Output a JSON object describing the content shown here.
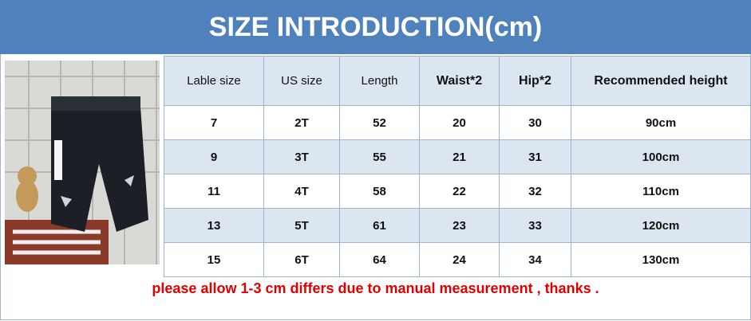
{
  "header": {
    "title": "SIZE INTRODUCTION(cm)"
  },
  "table": {
    "headers": [
      "Lable size",
      "US size",
      "Length",
      "Waist*2",
      "Hip*2",
      "Recommended height"
    ],
    "rows": [
      [
        "7",
        "2T",
        "52",
        "20",
        "30",
        "90cm"
      ],
      [
        "9",
        "3T",
        "55",
        "21",
        "31",
        "100cm"
      ],
      [
        "11",
        "4T",
        "58",
        "22",
        "32",
        "110cm"
      ],
      [
        "13",
        "5T",
        "61",
        "23",
        "33",
        "120cm"
      ],
      [
        "15",
        "6T",
        "64",
        "24",
        "34",
        "130cm"
      ]
    ]
  },
  "footer": {
    "note": "please allow 1-3 cm differs due to manual measurement , thanks ."
  }
}
